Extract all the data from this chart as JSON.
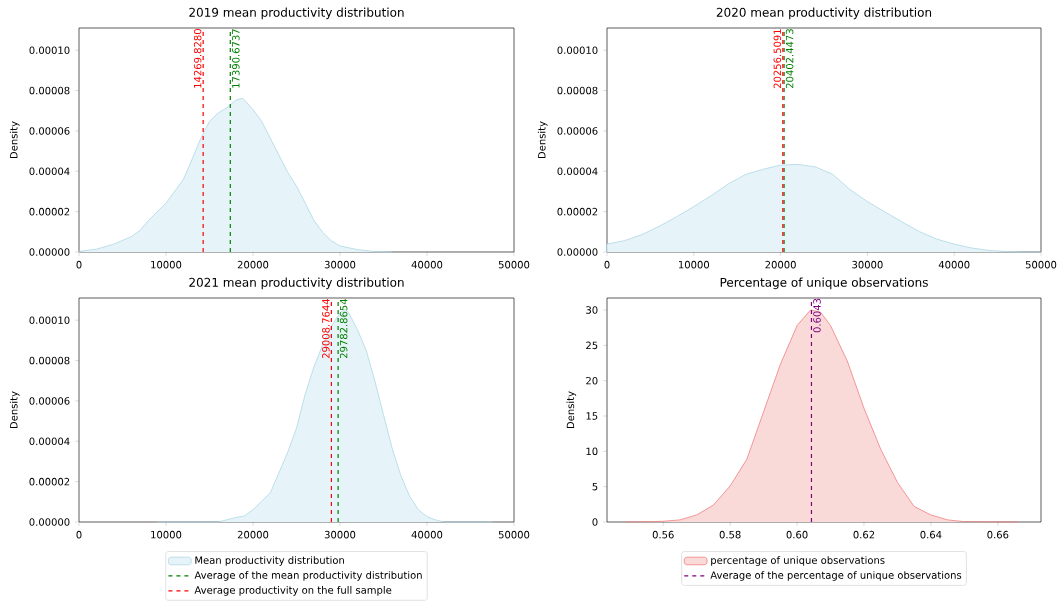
{
  "chart_data": [
    {
      "type": "area",
      "title": "2019 mean productivity distribution",
      "ylabel": "Density",
      "xlim": [
        0,
        50000
      ],
      "ylim": [
        0,
        0.000111
      ],
      "xticks": [
        0,
        10000,
        20000,
        30000,
        40000,
        50000
      ],
      "yticks": [
        {
          "value": 0,
          "label": "0.00000"
        },
        {
          "value": 2e-05,
          "label": "0.00002"
        },
        {
          "value": 4e-05,
          "label": "0.00004"
        },
        {
          "value": 6e-05,
          "label": "0.00006"
        },
        {
          "value": 8e-05,
          "label": "0.00008"
        },
        {
          "value": 0.0001,
          "label": "0.00010"
        }
      ],
      "series": [
        {
          "color": "#add8e6",
          "x": [
            0,
            2000,
            4000,
            6000,
            7000,
            8000,
            10000,
            12000,
            13000,
            14000,
            15000,
            16000,
            17000,
            18000,
            18800,
            20000,
            21000,
            22000,
            23000,
            24000,
            25000,
            26000,
            27000,
            28000,
            29000,
            30000,
            32000,
            34000,
            36000
          ],
          "values": [
            3e-07,
            1.4e-06,
            3.9e-06,
            7.6e-06,
            1.06e-05,
            1.57e-05,
            2.42e-05,
            3.6e-05,
            4.6e-05,
            5.63e-05,
            6.47e-05,
            6.89e-05,
            7.15e-05,
            7.52e-05,
            7.62e-05,
            7.06e-05,
            6.47e-05,
            5.63e-05,
            4.78e-05,
            3.94e-05,
            3.26e-05,
            2.42e-05,
            1.57e-05,
            9.8e-06,
            5.6e-06,
            3e-06,
            1.2e-06,
            2e-07,
            0
          ]
        }
      ],
      "ref_lines": [
        {
          "axis": "x",
          "value": 17390.6737,
          "color": "#008000",
          "line_style": "dashed"
        },
        {
          "axis": "x",
          "value": 14269.828,
          "color": "#ff0000",
          "line_style": "dashed"
        }
      ],
      "annotations": [
        {
          "text": "14269.8280",
          "x": 14269.828,
          "y": 8e-05
        },
        {
          "text": "17390.6737",
          "x": 17390.6737,
          "y": 8e-05
        }
      ]
    },
    {
      "type": "area",
      "title": "2020 mean productivity distribution",
      "ylabel": "Density",
      "xlim": [
        0,
        50000
      ],
      "ylim": [
        0,
        0.000111
      ],
      "xticks": [
        0,
        10000,
        20000,
        30000,
        40000,
        50000
      ],
      "yticks": [
        {
          "value": 0,
          "label": "0.00000"
        },
        {
          "value": 2e-05,
          "label": "0.00002"
        },
        {
          "value": 4e-05,
          "label": "0.00004"
        },
        {
          "value": 6e-05,
          "label": "0.00006"
        },
        {
          "value": 8e-05,
          "label": "0.00008"
        },
        {
          "value": 0.0001,
          "label": "0.00010"
        }
      ],
      "series": [
        {
          "color": "#add8e6",
          "x": [
            0,
            2000,
            4000,
            6000,
            8000,
            10000,
            12000,
            14000,
            16000,
            18000,
            20000,
            22000,
            24000,
            26000,
            28000,
            30000,
            32000,
            34000,
            36000,
            38000,
            40000,
            42000,
            44000,
            46000,
            48000,
            50000
          ],
          "values": [
            3.9e-06,
            5.6e-06,
            8.6e-06,
            1.27e-05,
            1.74e-05,
            2.25e-05,
            2.79e-05,
            3.38e-05,
            3.85e-05,
            4.1e-05,
            4.31e-05,
            4.34e-05,
            4.22e-05,
            3.85e-05,
            3.09e-05,
            2.5e-05,
            1.99e-05,
            1.49e-05,
            1.01e-05,
            6.4e-06,
            3.9e-06,
            2e-06,
            8e-07,
            2e-07,
            0,
            0
          ]
        }
      ],
      "ref_lines": [
        {
          "axis": "x",
          "value": 20402.4473,
          "color": "#008000",
          "line_style": "dashed"
        },
        {
          "axis": "x",
          "value": 20256.5091,
          "color": "#ff0000",
          "line_style": "dashed"
        }
      ],
      "annotations": [
        {
          "text": "20256.5091",
          "x": 20256.5091,
          "y": 8e-05
        },
        {
          "text": "20402.4473",
          "x": 20402.4473,
          "y": 8e-05
        }
      ]
    },
    {
      "type": "area",
      "title": "2021 mean productivity distribution",
      "ylabel": "Density",
      "xlim": [
        0,
        50000
      ],
      "ylim": [
        0,
        0.000111
      ],
      "legend": "bottom",
      "xticks": [
        0,
        10000,
        20000,
        30000,
        40000,
        50000
      ],
      "yticks": [
        {
          "value": 0,
          "label": "0.00000"
        },
        {
          "value": 2e-05,
          "label": "0.00002"
        },
        {
          "value": 4e-05,
          "label": "0.00004"
        },
        {
          "value": 6e-05,
          "label": "0.00006"
        },
        {
          "value": 8e-05,
          "label": "0.00008"
        },
        {
          "value": 0.0001,
          "label": "0.00010"
        }
      ],
      "series": [
        {
          "name": "Mean productivity distribution",
          "color": "#add8e6",
          "x": [
            9000,
            16000,
            18000,
            19000,
            20000,
            21000,
            22000,
            23000,
            24000,
            25000,
            26000,
            27000,
            28000,
            29000,
            30000,
            30600,
            31000,
            32000,
            33000,
            34000,
            35000,
            36000,
            37000,
            38000,
            39000,
            40000,
            41000,
            42000,
            47500
          ],
          "values": [
            0,
            0,
            2.2e-06,
            3e-06,
            6.1e-06,
            1.03e-05,
            1.45e-05,
            2.46e-05,
            3.47e-05,
            4.65e-05,
            6.33e-05,
            7.68e-05,
            8.77e-05,
            9.7e-05,
            0.0001037,
            0.0001054,
            0.0001037,
            9.53e-05,
            8.52e-05,
            7e-05,
            5.32e-05,
            3.64e-05,
            2.29e-05,
            1.28e-05,
            6.1e-06,
            2.7e-06,
            1e-06,
            0,
            0
          ]
        }
      ],
      "ref_lines": [
        {
          "axis": "x",
          "value": 29782.8654,
          "label": "Average of the mean productivity distribution",
          "color": "#008000",
          "line_style": "dashed"
        },
        {
          "axis": "x",
          "value": 29008.7644,
          "label": "Average productivity on the full sample",
          "color": "#ff0000",
          "line_style": "dashed"
        }
      ],
      "annotations": [
        {
          "text": "29008.7644",
          "x": 29008.7644,
          "y": 8e-05
        },
        {
          "text": "29782.8654",
          "x": 29782.8654,
          "y": 8e-05
        }
      ]
    },
    {
      "type": "area",
      "title": "Percentage of unique observations",
      "ylabel": "Density",
      "xlim": [
        0.5432,
        0.6729
      ],
      "ylim": [
        0,
        31.7
      ],
      "legend": "bottom",
      "xticks": [
        0.56,
        0.58,
        {
          "value": 0.6,
          "label": "0.60"
        },
        0.62,
        0.64,
        0.66
      ],
      "yticks": [
        0,
        5,
        10,
        15,
        20,
        25,
        30
      ],
      "series": [
        {
          "name": "percentage of unique observations",
          "color": "#f08080",
          "x": [
            0.549,
            0.56,
            0.565,
            0.57,
            0.575,
            0.58,
            0.585,
            0.59,
            0.595,
            0.6,
            0.604,
            0.607,
            0.61,
            0.615,
            0.62,
            0.625,
            0.63,
            0.635,
            0.64,
            0.645,
            0.65,
            0.666
          ],
          "values": [
            0,
            0.1,
            0.3,
            1.0,
            2.4,
            5.1,
            8.9,
            15.6,
            22.3,
            27.8,
            30.0,
            29.7,
            27.8,
            22.8,
            16.1,
            10.3,
            5.6,
            2.2,
            1.0,
            0.3,
            0.05,
            0
          ]
        }
      ],
      "ref_lines": [
        {
          "axis": "x",
          "value": 0.6043,
          "label": "Average of the percentage of unique observations",
          "color": "#800080",
          "line_style": "dashed"
        }
      ],
      "annotations": [
        {
          "text": "0.6043",
          "x": 0.6043,
          "y": 26.5
        }
      ]
    }
  ]
}
